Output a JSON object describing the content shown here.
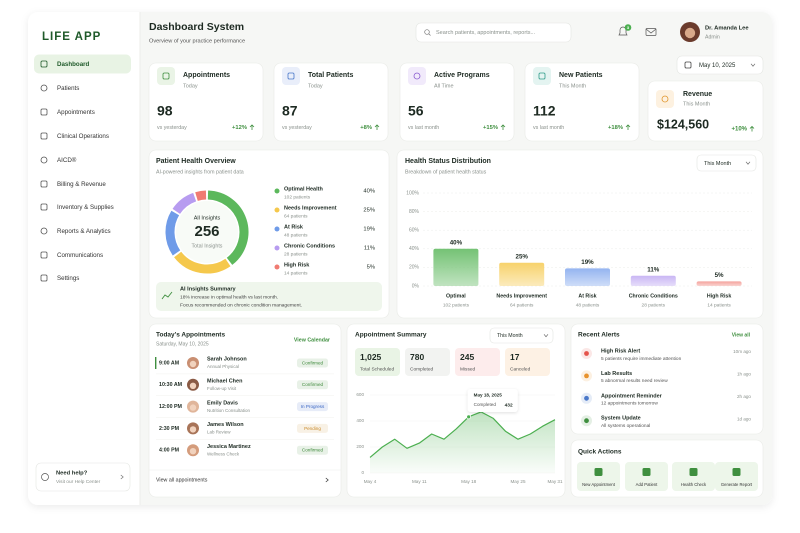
{
  "sidebar": {
    "logo": "LIFE APP",
    "nav": [
      "Dashboard",
      "Patients",
      "Appointments",
      "Clinical Operations",
      "AICD®",
      "Billing & Revenue",
      "Inventory & Supplies",
      "Reports & Analytics",
      "Communications",
      "Settings"
    ],
    "help": {
      "title": "Need help?",
      "text": "Visit our Help Center"
    }
  },
  "header": {
    "title": "Dashboard System",
    "subtitle": "Overview of your practice performance",
    "search_placeholder": "Search patients, appointments, reports...",
    "notifications": 3,
    "user_name": "Dr. Amanda Lee",
    "user_role": "Admin"
  },
  "date": "May 10, 2025",
  "stats": [
    {
      "title": "Appointments",
      "period": "Today",
      "value": 98,
      "comparison": "vs yesterday",
      "change": "+12%"
    },
    {
      "title": "Total Patients",
      "period": "Today",
      "value": 87,
      "comparison": "vs yesterday",
      "change": "+8%"
    },
    {
      "title": "Active Programs",
      "period": "All Time",
      "value": 56,
      "comparison": "vs last month",
      "change": "+15%"
    },
    {
      "title": "New Patients",
      "period": "This Month",
      "value": 112,
      "comparison": "vs last month",
      "change": "+18%"
    },
    {
      "title": "Revenue",
      "period": "This Month",
      "value": "$124,560",
      "change": "+10%"
    }
  ],
  "chart_data": [
    {
      "type": "donut",
      "title": "Patient Health Overview",
      "subtitle": "AI-powered insights from patient data",
      "center_label": "All Insights",
      "center_value": 256,
      "center_caption": "Total Insights",
      "categories": [
        "Optimal Health",
        "Needs Improvement",
        "At Risk",
        "Chronic Conditions",
        "High Risk"
      ],
      "sublabels": [
        "102 patients",
        "64 patients",
        "48 patients",
        "28 patients",
        "14 patients"
      ],
      "values": [
        40,
        25,
        19,
        11,
        5
      ],
      "value_labels": [
        "40%",
        "25%",
        "19%",
        "11%",
        "5%"
      ],
      "colors": [
        "#5cb85c",
        "#f5c84c",
        "#6f9be8",
        "#b79cf0",
        "#f07b72"
      ]
    },
    {
      "type": "bar",
      "title": "Health Status Distribution",
      "subtitle": "Breakdown of patient health status",
      "dropdown": "This Month",
      "categories": [
        "Optimal",
        "Needs Improvement",
        "At Risk",
        "Chronic Conditions",
        "High Risk"
      ],
      "sublabels": [
        "102 patients",
        "64 patients",
        "48 patients",
        "28 patients",
        "14 patients"
      ],
      "values": [
        40,
        25,
        19,
        11,
        5
      ],
      "value_labels": [
        "40%",
        "25%",
        "19%",
        "11%",
        "5%"
      ],
      "colors": [
        "#74c274",
        "#f7d26b",
        "#94b4f0",
        "#c9b6f4",
        "#f4a29c"
      ],
      "ylim": [
        0,
        100
      ],
      "yticks": [
        {
          "value": 0,
          "label": "0%"
        },
        {
          "value": 20,
          "label": "20%"
        },
        {
          "value": 40,
          "label": "40%"
        },
        {
          "value": 60,
          "label": "60%"
        },
        {
          "value": 80,
          "label": "80%"
        },
        {
          "value": 100,
          "label": "100%"
        }
      ],
      "grid": true
    },
    {
      "type": "line",
      "title": "Appointment Summary",
      "dropdown": "This Month",
      "summary": [
        {
          "value": "1,025",
          "label": "Total Scheduled"
        },
        {
          "value": 780,
          "label": "Completed"
        },
        {
          "value": 245,
          "label": "Missed"
        },
        {
          "value": 17,
          "label": "Canceled"
        }
      ],
      "categories": [
        "May 4",
        null,
        null,
        null,
        "May 11",
        null,
        null,
        null,
        "May 18",
        null,
        null,
        null,
        "May 25",
        null,
        null,
        "May 31"
      ],
      "values": [
        120,
        200,
        260,
        190,
        230,
        300,
        260,
        340,
        432,
        470,
        420,
        320,
        260,
        300,
        360,
        410
      ],
      "color": "#4caf50",
      "ylim": [
        0,
        600
      ],
      "yticks": [
        0,
        200,
        400,
        600
      ],
      "grid": true,
      "tooltip": {
        "date": "May 18, 2025",
        "label": "Completed",
        "value": 432
      }
    }
  ],
  "ai_summary": {
    "title": "AI Insights Summary",
    "lines": [
      "18% increase in optimal health vs last month.",
      "Focus recommended on chronic condition management."
    ]
  },
  "appointments": {
    "title": "Today's Appointments",
    "date": "Saturday, May 10, 2025",
    "link": "View Calendar",
    "rows": [
      {
        "time": "9:00 AM",
        "name": "Sarah Johnson",
        "type": "Annual Physical",
        "status": "Confirmed",
        "status_color": "#3f8a3c"
      },
      {
        "time": "10:30 AM",
        "name": "Michael Chen",
        "type": "Follow-up Visit",
        "status": "Confirmed",
        "status_color": "#3f8a3c"
      },
      {
        "time": "12:00 PM",
        "name": "Emily Davis",
        "type": "Nutrition Consultation",
        "status": "In Progress",
        "status_color": "#3a66c4"
      },
      {
        "time": "2:30 PM",
        "name": "James Wilson",
        "type": "Lab Review",
        "status": "Pending",
        "status_color": "#c98a2a"
      },
      {
        "time": "4:00 PM",
        "name": "Jessica Martinez",
        "type": "Wellness Check",
        "status": "Confirmed",
        "status_color": "#3f8a3c"
      }
    ],
    "footer": "View all appointments"
  },
  "alerts": {
    "title": "Recent Alerts",
    "link": "View all",
    "items": [
      {
        "title": "High Risk Alert",
        "text": "5 patients require immediate attention",
        "time": "10m ago"
      },
      {
        "title": "Lab Results",
        "text": "5 abnormal results need review",
        "time": "1h ago"
      },
      {
        "title": "Appointment Reminder",
        "text": "12 appointments tomorrow",
        "time": "2h ago"
      },
      {
        "title": "System Update",
        "text": "All systems operational",
        "time": "1d ago"
      }
    ]
  },
  "quick_actions": {
    "title": "Quick Actions",
    "items": [
      "New Appointment",
      "Add Patient",
      "Health Check",
      "Generate Report"
    ]
  }
}
